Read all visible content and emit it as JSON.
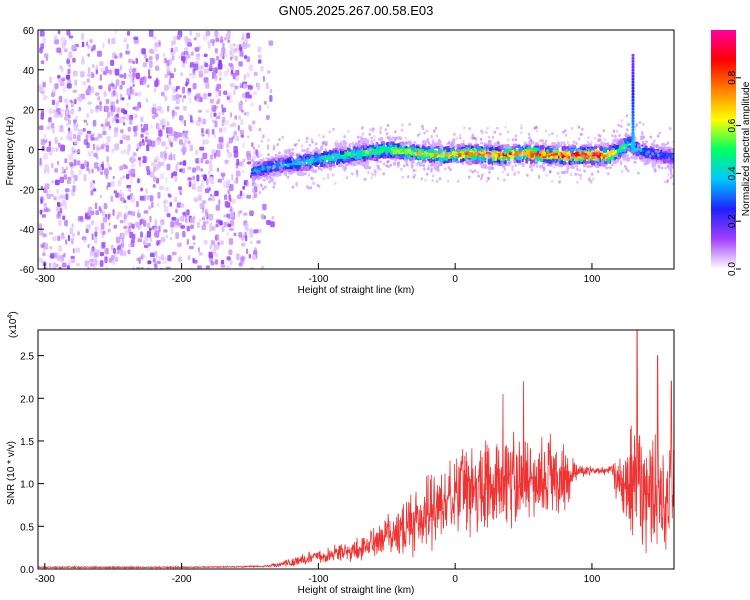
{
  "title": "GN05.2025.267.00.58.E03",
  "chart_data": [
    {
      "type": "heatmap",
      "name": "spectrogram",
      "xlabel": "Height of straight line (km)",
      "ylabel": "Frequency (Hz)",
      "xlim": [
        -305,
        160
      ],
      "ylim": [
        -60,
        60
      ],
      "xticks": [
        -300,
        -200,
        -100,
        0,
        100
      ],
      "xtick_labels": [
        "-300",
        "-200",
        "-100",
        "0",
        "100"
      ],
      "yticks": [
        -60,
        -40,
        -20,
        0,
        20,
        40,
        60
      ],
      "ytick_labels": [
        "-60",
        "-40",
        "-20",
        "0",
        "20",
        "40",
        "60"
      ],
      "colorbar": {
        "label": "Normalized spectral amplitude",
        "range": [
          0,
          1
        ],
        "ticks": [
          0.0,
          0.2,
          0.4,
          0.6,
          0.8
        ],
        "tick_labels": [
          "0.0",
          "0.2",
          "0.4",
          "0.6",
          "0.8"
        ],
        "colormap": [
          "#ffffff",
          "#a040ff",
          "#2020ff",
          "#00c8ff",
          "#00ff60",
          "#ffff00",
          "#ff8000",
          "#ff0000",
          "#ff00a0"
        ]
      },
      "ridge": {
        "x": [
          -150,
          -130,
          -110,
          -90,
          -70,
          -50,
          -30,
          -10,
          10,
          30,
          50,
          70,
          90,
          110,
          118,
          125,
          135,
          150,
          160
        ],
        "frequency": [
          -10,
          -7,
          -5,
          -3,
          -1,
          1,
          -1,
          -2,
          -1,
          -2,
          -1,
          -2,
          -2,
          -2,
          0,
          4,
          0,
          -2,
          -3
        ],
        "peak_amplitude": [
          0.35,
          0.4,
          0.45,
          0.5,
          0.55,
          0.6,
          0.7,
          0.75,
          0.8,
          0.85,
          0.85,
          0.95,
          0.95,
          0.95,
          0.6,
          0.5,
          0.35,
          0.3,
          0.3
        ]
      },
      "noise_region_x": [
        -305,
        -140
      ],
      "spike": {
        "x": 130,
        "frequency_range": [
          0,
          48
        ]
      }
    },
    {
      "type": "line",
      "name": "snr",
      "xlabel": "Height of straight line (km)",
      "ylabel": "SNR (10 * v/v)",
      "scale_label": "(x10",
      "scale_exponent": "4",
      "xlim": [
        -305,
        160
      ],
      "ylim": [
        0,
        2.8
      ],
      "xticks": [
        -300,
        -200,
        -100,
        0,
        100
      ],
      "xtick_labels": [
        "-300",
        "-200",
        "-100",
        "0",
        "100"
      ],
      "yticks": [
        0.0,
        0.5,
        1.0,
        1.5,
        2.0,
        2.5
      ],
      "ytick_labels": [
        "0.0",
        "0.5",
        "1.0",
        "1.5",
        "2.0",
        "2.5"
      ],
      "color": "#ee3333",
      "envelope": {
        "x": [
          -305,
          -200,
          -140,
          -130,
          -120,
          -100,
          -80,
          -60,
          -40,
          -20,
          0,
          20,
          40,
          60,
          80,
          90,
          100,
          115,
          120,
          130,
          140,
          150,
          160
        ],
        "mean": [
          0.02,
          0.02,
          0.03,
          0.05,
          0.08,
          0.15,
          0.2,
          0.3,
          0.45,
          0.65,
          0.85,
          1.0,
          1.05,
          1.05,
          1.05,
          1.15,
          1.15,
          1.15,
          1.05,
          0.95,
          0.85,
          0.9,
          0.95
        ],
        "spread": [
          0.01,
          0.01,
          0.01,
          0.03,
          0.06,
          0.1,
          0.15,
          0.2,
          0.35,
          0.5,
          0.55,
          0.6,
          0.65,
          0.6,
          0.55,
          0.08,
          0.06,
          0.06,
          0.5,
          0.85,
          0.9,
          0.8,
          0.7
        ]
      },
      "peaks": [
        {
          "x": 50,
          "y": 2.2
        },
        {
          "x": 35,
          "y": 2.05
        },
        {
          "x": 133,
          "y": 2.8
        },
        {
          "x": 148,
          "y": 2.5
        },
        {
          "x": 158,
          "y": 2.2
        }
      ]
    }
  ]
}
